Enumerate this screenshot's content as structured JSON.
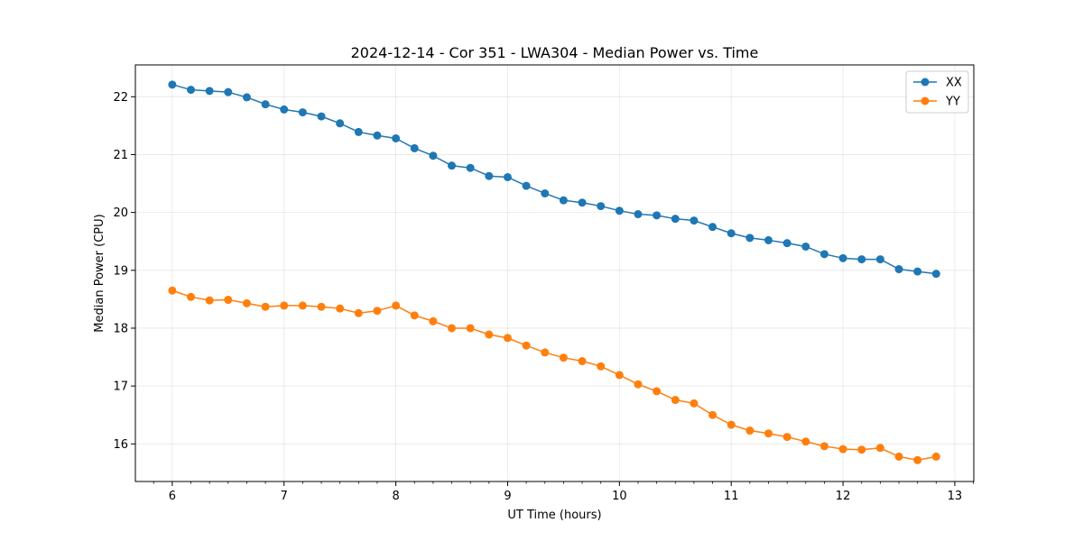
{
  "chart_data": {
    "type": "line",
    "title": "2024-12-14 - Cor 351 - LWA304 - Median Power vs. Time",
    "xlabel": "UT Time (hours)",
    "ylabel": "Median Power (CPU)",
    "xlim": [
      5.67,
      13.17
    ],
    "ylim": [
      15.35,
      22.55
    ],
    "xticks": [
      6,
      7,
      8,
      9,
      10,
      11,
      12,
      13
    ],
    "yticks": [
      16,
      17,
      18,
      19,
      20,
      21,
      22
    ],
    "grid": true,
    "legend_position": "top-right",
    "x": [
      6.0,
      6.1667,
      6.3333,
      6.5,
      6.6667,
      6.8333,
      7.0,
      7.1667,
      7.3333,
      7.5,
      7.6667,
      7.8333,
      8.0,
      8.1667,
      8.3333,
      8.5,
      8.6667,
      8.8333,
      9.0,
      9.1667,
      9.3333,
      9.5,
      9.6667,
      9.8333,
      10.0,
      10.1667,
      10.3333,
      10.5,
      10.6667,
      10.8333,
      11.0,
      11.1667,
      11.3333,
      11.5,
      11.6667,
      11.8333,
      12.0,
      12.1667,
      12.3333,
      12.5,
      12.6667,
      12.8333
    ],
    "series": [
      {
        "name": "XX",
        "color": "#1f77b4",
        "values": [
          22.21,
          22.12,
          22.1,
          22.08,
          21.99,
          21.87,
          21.78,
          21.73,
          21.66,
          21.54,
          21.39,
          21.33,
          21.28,
          21.11,
          20.98,
          20.81,
          20.77,
          20.63,
          20.61,
          20.46,
          20.33,
          20.21,
          20.17,
          20.11,
          20.03,
          19.97,
          19.95,
          19.89,
          19.86,
          19.75,
          19.64,
          19.56,
          19.52,
          19.47,
          19.41,
          19.28,
          19.21,
          19.19,
          19.19,
          19.02,
          18.98,
          18.94
        ]
      },
      {
        "name": "YY",
        "color": "#ff7f0e",
        "values": [
          18.65,
          18.54,
          18.48,
          18.49,
          18.43,
          18.37,
          18.39,
          18.39,
          18.37,
          18.34,
          18.26,
          18.3,
          18.39,
          18.22,
          18.12,
          18.0,
          18.0,
          17.89,
          17.83,
          17.7,
          17.58,
          17.49,
          17.43,
          17.34,
          17.19,
          17.03,
          16.91,
          16.76,
          16.7,
          16.5,
          16.33,
          16.23,
          16.18,
          16.12,
          16.04,
          15.96,
          15.91,
          15.9,
          15.93,
          15.78,
          15.72,
          15.78
        ]
      }
    ]
  }
}
